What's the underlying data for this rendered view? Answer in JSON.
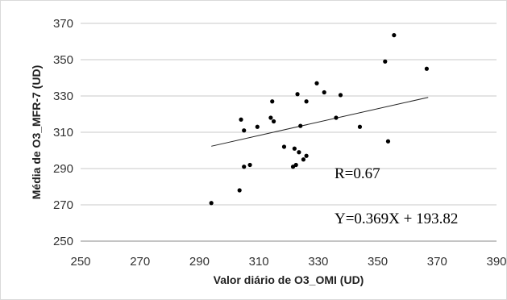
{
  "chart_data": {
    "type": "scatter",
    "title": "",
    "xlabel": "Valor diário de O3_OMI (UD)",
    "ylabel": "Média de O3_MFR-7 (UD)",
    "xlim": [
      250,
      390
    ],
    "ylim": [
      250,
      370
    ],
    "xticks": [
      "250",
      "270",
      "290",
      "310",
      "330",
      "350",
      "370",
      "390"
    ],
    "yticks": [
      "250",
      "270",
      "290",
      "310",
      "330",
      "350",
      "370"
    ],
    "grid": "horizontal",
    "legend": "none",
    "point_color": "#000000",
    "trendline": {
      "slope": 0.369,
      "intercept": 193.82,
      "x_range": [
        294,
        367
      ]
    },
    "annotations": [
      "R=0.67",
      "Y=0.369X + 193.82"
    ],
    "series": [
      {
        "points": [
          [
            294,
            271
          ],
          [
            303.5,
            278
          ],
          [
            304,
            317
          ],
          [
            305,
            311
          ],
          [
            305,
            291
          ],
          [
            307,
            292
          ],
          [
            309.5,
            313
          ],
          [
            314,
            318
          ],
          [
            314.5,
            327
          ],
          [
            315,
            316
          ],
          [
            318.5,
            302
          ],
          [
            321.5,
            291
          ],
          [
            322,
            301
          ],
          [
            322.5,
            292
          ],
          [
            323,
            331
          ],
          [
            323.5,
            299
          ],
          [
            324,
            313.5
          ],
          [
            325,
            295
          ],
          [
            326,
            327
          ],
          [
            326,
            297
          ],
          [
            329.5,
            337
          ],
          [
            332,
            332
          ],
          [
            336,
            318
          ],
          [
            337.5,
            330.5
          ],
          [
            344,
            313
          ],
          [
            352.5,
            349
          ],
          [
            353.5,
            305
          ],
          [
            355.5,
            363.5
          ],
          [
            366.5,
            345
          ]
        ]
      }
    ]
  }
}
